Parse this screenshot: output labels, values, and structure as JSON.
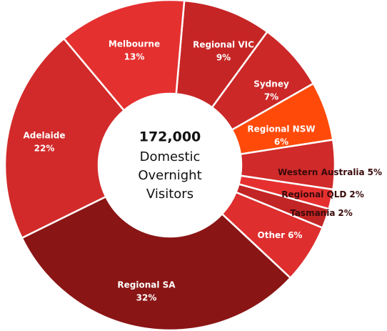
{
  "chart_data": {
    "type": "donut",
    "center_value": "172,000",
    "center_text": [
      "Domestic",
      "Overnight",
      "Visitors"
    ],
    "categories": [
      "Regional VIC",
      "Sydney",
      "Regional NSW",
      "Western Australia",
      "Regional QLD",
      "Tasmania",
      "Other",
      "Regional SA",
      "Adelaide",
      "Melbourne"
    ],
    "values": [
      9,
      7,
      6,
      5,
      2,
      2,
      6,
      32,
      22,
      13
    ],
    "value_labels": [
      "9%",
      "7%",
      "6%",
      "5%",
      "2%",
      "2%",
      "6%",
      "32%",
      "22%",
      "13%"
    ],
    "colors": [
      "#c62525",
      "#cc2828",
      "#ff4a0a",
      "#d02a2a",
      "#e63030",
      "#c22525",
      "#de2e2e",
      "#8a1515",
      "#d22a2a",
      "#e53030"
    ]
  }
}
